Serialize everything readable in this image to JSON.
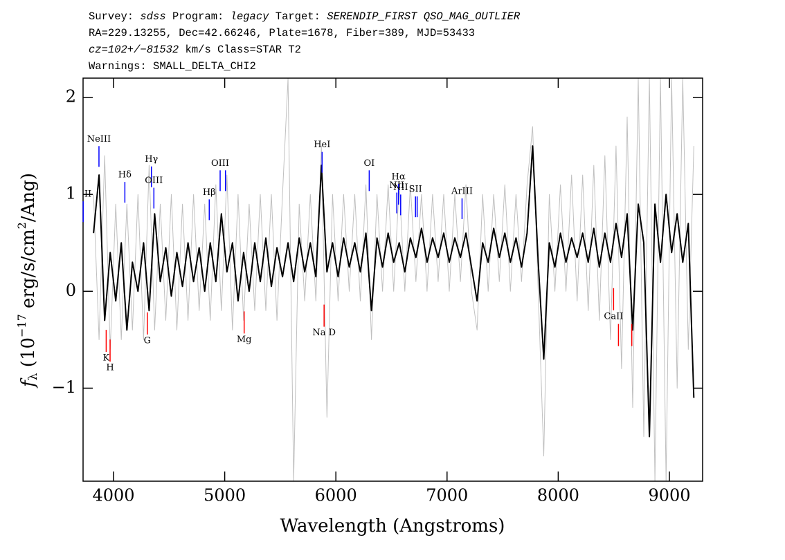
{
  "chart_data": {
    "type": "line",
    "title_lines": [
      [
        "Survey: ",
        "sdss",
        " Program: ",
        "legacy",
        " Target: ",
        "SERENDIP_FIRST QSO_MAG_OUTLIER"
      ],
      [
        "RA=229.13255, Dec=42.66246, Plate=1678, Fiber=389, MJD=53433"
      ],
      [
        "cz=102+/−81532",
        " km/s Class=STAR T2"
      ],
      [
        "Warnings: SMALL_DELTA_CHI2"
      ]
    ],
    "y_label": [
      "f",
      "λ",
      " (10",
      "−17",
      " erg/s/cm",
      "2",
      "/Ang)"
    ],
    "x_label": "Wavelength (Angstroms)",
    "xlim": [
      3726,
      9299
    ],
    "ylim": [
      -1.96,
      2.2
    ],
    "xticks": [
      4000,
      5000,
      6000,
      7000,
      8000,
      9000
    ],
    "yticks": [
      2,
      1,
      0,
      {
        "value": -1,
        "label": "−1"
      }
    ],
    "x": [
      3820,
      3870,
      3920,
      3970,
      4020,
      4070,
      4120,
      4170,
      4220,
      4270,
      4320,
      4370,
      4420,
      4470,
      4520,
      4570,
      4620,
      4670,
      4720,
      4770,
      4820,
      4870,
      4920,
      4970,
      5020,
      5070,
      5120,
      5170,
      5220,
      5270,
      5320,
      5370,
      5420,
      5470,
      5520,
      5570,
      5620,
      5670,
      5720,
      5770,
      5820,
      5870,
      5920,
      5970,
      6020,
      6070,
      6120,
      6170,
      6220,
      6270,
      6320,
      6370,
      6420,
      6470,
      6520,
      6570,
      6620,
      6670,
      6720,
      6770,
      6820,
      6870,
      6920,
      6970,
      7020,
      7070,
      7120,
      7170,
      7220,
      7270,
      7320,
      7370,
      7420,
      7470,
      7520,
      7570,
      7620,
      7670,
      7720,
      7770,
      7820,
      7870,
      7920,
      7970,
      8020,
      8070,
      8120,
      8170,
      8220,
      8270,
      8320,
      8370,
      8420,
      8470,
      8520,
      8570,
      8620,
      8670,
      8720,
      8770,
      8820,
      8870,
      8920,
      8970,
      9020,
      9070,
      9120,
      9170,
      9220
    ],
    "series": [
      {
        "color": "#c0c0c0",
        "values": [
          1.0,
          -0.5,
          1.4,
          -0.6,
          0.9,
          -0.5,
          0.9,
          -0.4,
          1.0,
          -0.5,
          1.3,
          -0.4,
          0.9,
          -0.3,
          1.0,
          -0.4,
          0.9,
          -0.3,
          1.0,
          -0.2,
          0.9,
          -0.3,
          1.1,
          -0.2,
          1.2,
          -0.4,
          1.0,
          -0.3,
          0.9,
          -0.2,
          1.0,
          -0.2,
          1.0,
          -0.3,
          1.0,
          2.2,
          -1.96,
          0.9,
          -0.1,
          1.0,
          -0.1,
          1.5,
          -1.3,
          1.0,
          -0.1,
          1.0,
          0.0,
          1.0,
          -0.1,
          1.1,
          -0.5,
          1.0,
          0.0,
          1.1,
          0.0,
          1.1,
          0.0,
          1.1,
          0.1,
          1.0,
          0.0,
          1.0,
          0.1,
          1.0,
          0.0,
          1.0,
          0.1,
          1.1,
          0.0,
          -0.4,
          1.0,
          0.0,
          1.0,
          0.1,
          1.1,
          0.0,
          1.0,
          0.1,
          1.1,
          1.7,
          0.0,
          -1.7,
          1.0,
          0.0,
          1.1,
          0.0,
          1.2,
          -0.1,
          1.2,
          -0.2,
          1.3,
          -0.3,
          1.4,
          -0.5,
          1.5,
          -0.8,
          1.8,
          -1.2,
          2.2,
          -1.5,
          2.2,
          -1.96,
          2.2,
          -1.96,
          2.2,
          -1.0,
          2.2,
          -0.6,
          1.5
        ]
      },
      {
        "color": "#000000",
        "values": [
          0.6,
          1.2,
          -0.3,
          0.4,
          -0.1,
          0.5,
          -0.4,
          0.3,
          0.0,
          0.5,
          -0.2,
          0.8,
          0.1,
          0.45,
          -0.05,
          0.4,
          0.05,
          0.5,
          0.1,
          0.45,
          0.0,
          0.5,
          0.1,
          0.8,
          0.2,
          0.5,
          -0.1,
          0.4,
          0.0,
          0.5,
          0.1,
          0.55,
          0.05,
          0.45,
          0.15,
          0.5,
          0.1,
          0.55,
          0.2,
          0.5,
          0.15,
          1.3,
          0.2,
          0.5,
          0.15,
          0.55,
          0.25,
          0.5,
          0.2,
          0.6,
          -0.2,
          0.55,
          0.25,
          0.6,
          0.3,
          0.5,
          0.2,
          0.55,
          0.35,
          0.65,
          0.3,
          0.55,
          0.35,
          0.6,
          0.3,
          0.55,
          0.35,
          0.6,
          0.25,
          -0.1,
          0.5,
          0.3,
          0.65,
          0.35,
          0.6,
          0.3,
          0.55,
          0.25,
          0.6,
          1.5,
          0.3,
          -0.7,
          0.5,
          0.25,
          0.6,
          0.3,
          0.55,
          0.35,
          0.6,
          0.3,
          0.65,
          0.25,
          0.6,
          0.3,
          0.7,
          0.35,
          0.8,
          -0.4,
          0.9,
          0.5,
          -1.5,
          0.9,
          0.3,
          1.0,
          0.4,
          0.8,
          0.3,
          0.7,
          -1.1
        ]
      }
    ],
    "emission_lines": {
      "color": "#0000ff",
      "x": [
        3727,
        3869,
        4102,
        4341,
        4363,
        4861,
        4959,
        5007,
        5876,
        6300,
        6548,
        6563,
        6583,
        6716,
        6731,
        7135
      ],
      "labels": [
        "II",
        "NeIII",
        "Hδ",
        "Hγ",
        "OIII",
        "Hβ",
        "OIII",
        null,
        "HeI",
        "OI",
        "NII",
        "Hα",
        "NII",
        "SII",
        null,
        "ArIII"
      ],
      "label_y": [
        1.0,
        1.57,
        1.2,
        1.36,
        1.14,
        1.02,
        1.32,
        1.32,
        1.51,
        1.32,
        1.09,
        1.18,
        1.07,
        1.05,
        1.05,
        1.03
      ]
    },
    "absorption_lines": {
      "color": "#ff0000",
      "x": [
        3934,
        3969,
        4304,
        5175,
        5894,
        8498,
        8542,
        8662
      ],
      "labels": [
        "K",
        "H",
        "G",
        "Mg",
        "Na D",
        "CaII",
        null,
        null
      ],
      "label_y": [
        -0.69,
        -0.79,
        -0.51,
        -0.5,
        -0.43,
        -0.26,
        -0.63,
        -0.63
      ]
    }
  }
}
